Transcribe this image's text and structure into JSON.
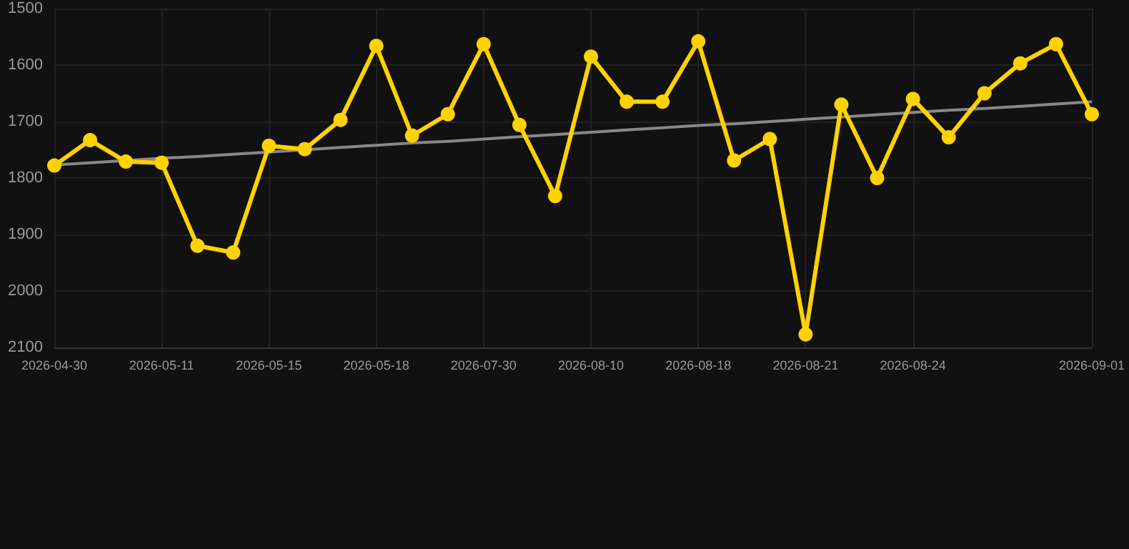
{
  "chart_data": {
    "type": "line",
    "categories": [
      "2026-04-30",
      null,
      null,
      "2026-05-11",
      null,
      null,
      "2026-05-15",
      null,
      null,
      "2026-05-18",
      null,
      null,
      "2026-07-30",
      null,
      null,
      "2026-08-10",
      null,
      null,
      "2026-08-18",
      null,
      null,
      "2026-08-21",
      null,
      null,
      "2026-08-24",
      null,
      null,
      null,
      null,
      "2026-09-01"
    ],
    "series": [
      {
        "color": "#ffd200",
        "marker": "circle",
        "values": [
          1778,
          1733,
          1771,
          1773,
          1920,
          1932,
          1743,
          1749,
          1697,
          1566,
          1725,
          1687,
          1563,
          1706,
          1832,
          1585,
          1665,
          1665,
          1558,
          1769,
          1731,
          2077,
          1670,
          1800,
          1660,
          1728,
          1650,
          1597,
          1563,
          1687
        ]
      },
      {
        "color": "#888888",
        "marker": "none",
        "values": [
          1777,
          1773,
          1769,
          1765,
          1762,
          1758,
          1754,
          1750,
          1746,
          1742,
          1738,
          1735,
          1731,
          1727,
          1723,
          1719,
          1715,
          1711,
          1707,
          1704,
          1700,
          1696,
          1692,
          1688,
          1684,
          1680,
          1677,
          1673,
          1669,
          1665
        ]
      }
    ],
    "ylim": [
      2100,
      1500
    ],
    "yticks": [
      1500,
      1600,
      1700,
      1800,
      1900,
      2000,
      2100
    ],
    "grid": true
  }
}
